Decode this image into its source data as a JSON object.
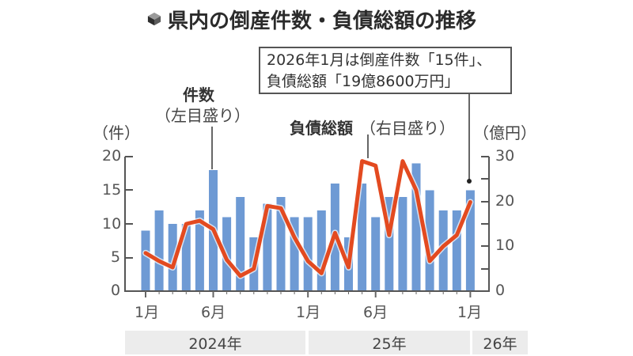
{
  "title": "県内の倒産件数・負債総額の推移",
  "title_icon": "cube-icon",
  "callout": {
    "line1": "2026年1月は倒産件数「15件」、",
    "line2": "負債総額「19億8600万円」"
  },
  "labels": {
    "count_series": "件数",
    "count_axis_note": "（左目盛り）",
    "debt_series": "負債総額",
    "debt_axis_note": "（右目盛り）",
    "left_unit": "（件）",
    "right_unit": "（億円）"
  },
  "left_ticks": [
    "20",
    "15",
    "10",
    "5",
    "0"
  ],
  "right_ticks": [
    "30",
    "20",
    "10",
    "0"
  ],
  "x_ticks": [
    "1月",
    "6月",
    "1月",
    "6月",
    "1月"
  ],
  "years": [
    "2024年",
    "25年",
    "26年"
  ],
  "colors": {
    "bar": "#6e9ad4",
    "line": "#e34a20",
    "axis": "#555555",
    "band": "#ececec"
  },
  "chart_data": {
    "type": "bar+line",
    "title": "県内の倒産件数・負債総額の推移",
    "categories": [
      "2024-01",
      "2024-02",
      "2024-03",
      "2024-04",
      "2024-05",
      "2024-06",
      "2024-07",
      "2024-08",
      "2024-09",
      "2024-10",
      "2024-11",
      "2024-12",
      "2025-01",
      "2025-02",
      "2025-03",
      "2025-04",
      "2025-05",
      "2025-06",
      "2025-07",
      "2025-08",
      "2025-09",
      "2025-10",
      "2025-11",
      "2025-12",
      "2026-01"
    ],
    "series": [
      {
        "name": "件数（左目盛り）",
        "type": "bar",
        "axis": "left",
        "unit": "件",
        "values": [
          9,
          12,
          10,
          10,
          12,
          18,
          11,
          14,
          8,
          13,
          14,
          11,
          11,
          12,
          16,
          8,
          16,
          11,
          14,
          14,
          19,
          15,
          12,
          12,
          15
        ]
      },
      {
        "name": "負債総額（右目盛り）",
        "type": "line",
        "axis": "right",
        "unit": "億円",
        "values": [
          8.5,
          6.7,
          5.3,
          15,
          15.7,
          13.8,
          7,
          3.4,
          5,
          19,
          18.5,
          12,
          6.7,
          4,
          13,
          5.3,
          29,
          28,
          12.5,
          29,
          22.5,
          6.7,
          10,
          12.5,
          19.86
        ]
      }
    ],
    "ylim_left": [
      0,
      20
    ],
    "ylim_right": [
      0,
      30
    ],
    "ylabel_left": "（件）",
    "ylabel_right": "（億円）",
    "x_tick_labels": [
      "1月",
      "6月",
      "1月",
      "6月",
      "1月"
    ],
    "year_labels": [
      "2024年",
      "25年",
      "26年"
    ],
    "annotation": "2026年1月は倒産件数「15件」、負債総額「19億8600万円」",
    "grid": false
  }
}
